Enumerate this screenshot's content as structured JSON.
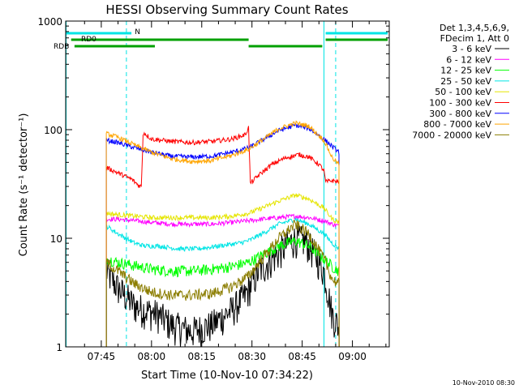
{
  "chart_data": {
    "type": "line",
    "title": "HESSI Observing Summary Count Rates",
    "xlabel": "Start Time (10-Nov-10 07:34:22)",
    "ylabel": "Count Rate (s⁻¹ detector⁻¹)",
    "yscale": "log",
    "ylim": [
      1,
      1000
    ],
    "xlim": [
      "07:34:22",
      "09:11:00"
    ],
    "x_tick_labels": [
      "07:45",
      "08:00",
      "08:15",
      "08:30",
      "08:45",
      "09:00"
    ],
    "x_tick_minutes": [
      45,
      60,
      75,
      90,
      105,
      120
    ],
    "y_tick_labels": [
      "1",
      "10",
      "100",
      "1000"
    ],
    "y_ticks": [
      1,
      10,
      100,
      1000
    ],
    "grid": false,
    "legend_position": "right",
    "legend_header": [
      "Det 1,3,4,5,6,9,",
      "FDecim 1, Att 0"
    ],
    "timestamp": "10-Nov-2010 08:30",
    "flags": [
      {
        "label": "N",
        "color": "#00e5e5",
        "segments": [
          [
            34.5,
            54
          ],
          [
            112,
            131
          ]
        ]
      },
      {
        "label": "RD0",
        "color": "#00a000",
        "segments": [
          [
            36,
            89
          ],
          [
            112,
            131
          ]
        ]
      },
      {
        "label": "RDB",
        "color": "#00a000",
        "segments": [
          [
            37,
            61
          ],
          [
            89,
            111
          ]
        ]
      }
    ],
    "vlines_solid_min": [
      34.5,
      111.5
    ],
    "vlines_dashed_min": [
      52.5,
      115,
      131
    ],
    "gaps_min": [
      [
        34.5,
        46.5
      ],
      [
        111.5,
        114
      ],
      [
        117,
        131
      ]
    ],
    "series": [
      {
        "name": "3 - 6 keV",
        "color": "#000000",
        "points": [
          [
            46.5,
            5
          ],
          [
            50,
            3.5
          ],
          [
            55,
            2.4
          ],
          [
            58,
            2.2
          ],
          [
            62,
            2
          ],
          [
            66,
            1.6
          ],
          [
            72,
            1.4
          ],
          [
            78,
            1.6
          ],
          [
            84,
            2.2
          ],
          [
            88,
            3
          ],
          [
            92,
            5
          ],
          [
            96,
            6.5
          ],
          [
            100,
            8.5
          ],
          [
            103,
            10
          ],
          [
            106,
            9.5
          ],
          [
            109,
            7
          ],
          [
            111.5,
            5
          ],
          [
            114,
            2
          ],
          [
            116,
            1.5
          ]
        ]
      },
      {
        "name": "6 - 12 keV",
        "color": "#ff00ff",
        "points": [
          [
            46.5,
            15
          ],
          [
            50,
            15
          ],
          [
            55,
            14.5
          ],
          [
            60,
            14
          ],
          [
            66,
            13.5
          ],
          [
            72,
            13.5
          ],
          [
            78,
            13.5
          ],
          [
            84,
            14
          ],
          [
            89,
            14.5
          ],
          [
            93,
            15
          ],
          [
            98,
            15.5
          ],
          [
            103,
            16
          ],
          [
            107,
            15.5
          ],
          [
            111.5,
            14.5
          ],
          [
            114,
            13.5
          ],
          [
            116,
            13
          ]
        ]
      },
      {
        "name": "12 - 25 keV",
        "color": "#00ff00",
        "points": [
          [
            46.5,
            6.5
          ],
          [
            50,
            6
          ],
          [
            55,
            5.6
          ],
          [
            60,
            5.2
          ],
          [
            66,
            5
          ],
          [
            72,
            5
          ],
          [
            78,
            5.2
          ],
          [
            84,
            5.5
          ],
          [
            89,
            6
          ],
          [
            93,
            7
          ],
          [
            98,
            8.5
          ],
          [
            103,
            9.5
          ],
          [
            107,
            8.5
          ],
          [
            111.5,
            6.5
          ],
          [
            114,
            5.5
          ],
          [
            116,
            5
          ]
        ]
      },
      {
        "name": "25 - 50 keV",
        "color": "#00e5e5",
        "points": [
          [
            46.5,
            13
          ],
          [
            50,
            11
          ],
          [
            55,
            9
          ],
          [
            58,
            8.5
          ],
          [
            62,
            8.5
          ],
          [
            68,
            8
          ],
          [
            74,
            8
          ],
          [
            80,
            8.5
          ],
          [
            86,
            9
          ],
          [
            89,
            9.5
          ],
          [
            93,
            11
          ],
          [
            98,
            13.5
          ],
          [
            103,
            15
          ],
          [
            107,
            13.5
          ],
          [
            111.5,
            11
          ],
          [
            114,
            9
          ],
          [
            116,
            8
          ]
        ]
      },
      {
        "name": "50 - 100 keV",
        "color": "#e5e500",
        "points": [
          [
            46.5,
            17
          ],
          [
            50,
            16.5
          ],
          [
            55,
            16
          ],
          [
            60,
            15.5
          ],
          [
            66,
            15.5
          ],
          [
            72,
            15.5
          ],
          [
            78,
            15.5
          ],
          [
            84,
            16
          ],
          [
            89,
            17
          ],
          [
            93,
            19
          ],
          [
            98,
            22
          ],
          [
            103,
            25
          ],
          [
            107,
            23
          ],
          [
            111.5,
            19
          ],
          [
            114,
            15
          ],
          [
            116,
            14
          ]
        ]
      },
      {
        "name": "100 - 300 keV",
        "color": "#ff0000",
        "points": [
          [
            46.5,
            45
          ],
          [
            50,
            40
          ],
          [
            54,
            35
          ],
          [
            56,
            31
          ],
          [
            57,
            30
          ],
          [
            57.5,
            95
          ],
          [
            60,
            82
          ],
          [
            66,
            78
          ],
          [
            72,
            76
          ],
          [
            78,
            78
          ],
          [
            84,
            82
          ],
          [
            88,
            90
          ],
          [
            89,
            105
          ],
          [
            89.5,
            32
          ],
          [
            92,
            38
          ],
          [
            96,
            48
          ],
          [
            100,
            55
          ],
          [
            104,
            59
          ],
          [
            107,
            56
          ],
          [
            110,
            48
          ],
          [
            111.5,
            42
          ],
          [
            112,
            33
          ],
          [
            114,
            34
          ],
          [
            116,
            33
          ]
        ]
      },
      {
        "name": "300 - 800 keV",
        "color": "#0000ff",
        "points": [
          [
            46.5,
            80
          ],
          [
            50,
            76
          ],
          [
            55,
            68
          ],
          [
            60,
            62
          ],
          [
            66,
            57
          ],
          [
            72,
            56
          ],
          [
            78,
            57
          ],
          [
            84,
            62
          ],
          [
            89,
            68
          ],
          [
            93,
            80
          ],
          [
            98,
            98
          ],
          [
            103,
            110
          ],
          [
            107,
            103
          ],
          [
            111.5,
            82
          ],
          [
            114,
            70
          ],
          [
            116,
            62
          ]
        ]
      },
      {
        "name": "800 - 7000 keV",
        "color": "#ffa500",
        "points": [
          [
            46.5,
            92
          ],
          [
            50,
            85
          ],
          [
            55,
            72
          ],
          [
            60,
            62
          ],
          [
            66,
            54
          ],
          [
            72,
            51
          ],
          [
            78,
            52
          ],
          [
            84,
            58
          ],
          [
            89,
            66
          ],
          [
            93,
            80
          ],
          [
            98,
            102
          ],
          [
            103,
            115
          ],
          [
            107,
            108
          ],
          [
            111.5,
            80
          ],
          [
            114,
            55
          ],
          [
            116,
            48
          ]
        ]
      },
      {
        "name": "7000 - 20000 keV",
        "color": "#8b7d00",
        "points": [
          [
            46.5,
            6
          ],
          [
            50,
            5
          ],
          [
            55,
            3.8
          ],
          [
            60,
            3.2
          ],
          [
            66,
            3
          ],
          [
            72,
            3
          ],
          [
            78,
            3.1
          ],
          [
            84,
            3.6
          ],
          [
            89,
            4.5
          ],
          [
            93,
            6.5
          ],
          [
            98,
            10
          ],
          [
            103,
            13.5
          ],
          [
            107,
            11
          ],
          [
            111.5,
            6.5
          ],
          [
            114,
            4.2
          ],
          [
            116,
            3.8
          ]
        ]
      }
    ]
  }
}
